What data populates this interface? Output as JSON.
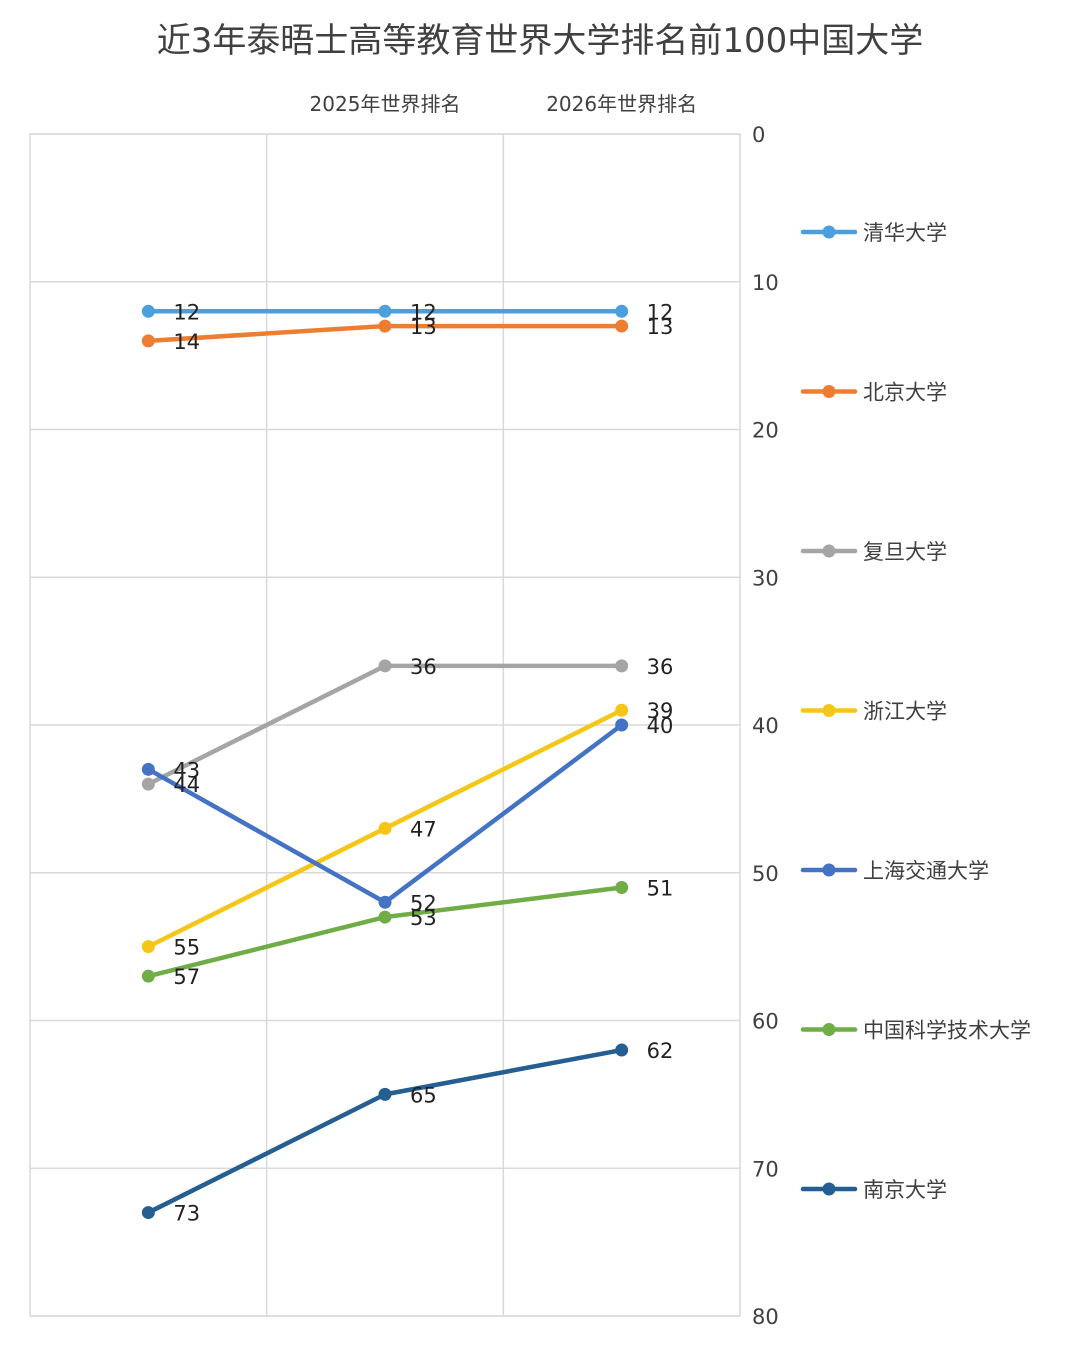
{
  "chart_data": {
    "type": "line",
    "title": "近3年泰晤士高等教育世界大学排名前100中国大学",
    "categories": [
      "",
      "2025年世界排名",
      "2026年世界排名"
    ],
    "y_axis": {
      "min": 0,
      "max": 80,
      "reversed": true,
      "position": "right",
      "ticks": [
        0,
        10,
        20,
        30,
        40,
        50,
        60,
        70,
        80
      ]
    },
    "grid": true,
    "legend_position": "right",
    "series": [
      {
        "name": "清华大学",
        "color": "#4a9fdc",
        "values": [
          12,
          12,
          12
        ],
        "labels": [
          "12",
          "12",
          "12"
        ]
      },
      {
        "name": "北京大学",
        "color": "#ed7d31",
        "values": [
          14,
          13,
          13
        ],
        "labels": [
          "14",
          "13",
          "13"
        ]
      },
      {
        "name": "复旦大学",
        "color": "#a5a5a5",
        "values": [
          44,
          36,
          36
        ],
        "labels": [
          "44",
          "36",
          "36"
        ]
      },
      {
        "name": "浙江大学",
        "color": "#f5c518",
        "values": [
          55,
          47,
          39
        ],
        "labels": [
          "55",
          "47",
          "39"
        ]
      },
      {
        "name": "上海交通大学",
        "color": "#4472c4",
        "values": [
          43,
          52,
          40
        ],
        "labels": [
          "43",
          "52",
          "40"
        ]
      },
      {
        "name": "中国科学技术大学",
        "color": "#70ad47",
        "values": [
          57,
          53,
          51
        ],
        "labels": [
          "57",
          "53",
          "51"
        ]
      },
      {
        "name": "南京大学",
        "color": "#255e91",
        "values": [
          73,
          65,
          62
        ],
        "labels": [
          "73",
          "65",
          "62"
        ]
      }
    ]
  }
}
